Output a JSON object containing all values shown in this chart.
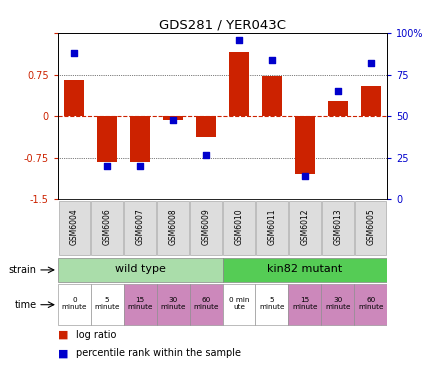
{
  "title": "GDS281 / YER043C",
  "samples": [
    "GSM6004",
    "GSM6006",
    "GSM6007",
    "GSM6008",
    "GSM6009",
    "GSM6010",
    "GSM6011",
    "GSM6012",
    "GSM6013",
    "GSM6005"
  ],
  "log_ratio": [
    0.65,
    -0.82,
    -0.82,
    -0.07,
    -0.38,
    1.15,
    0.72,
    -1.05,
    0.28,
    0.55
  ],
  "percentile": [
    88,
    20,
    20,
    48,
    27,
    96,
    84,
    14,
    65,
    82
  ],
  "bar_color": "#cc2200",
  "dot_color": "#0000cc",
  "ylim_left": [
    -1.5,
    1.5
  ],
  "ylim_right": [
    0,
    100
  ],
  "yticks_left": [
    -1.5,
    -0.75,
    0,
    0.75,
    1.5
  ],
  "ytick_labels_left": [
    "-1.5",
    "-0.75",
    "0",
    "0.75",
    ""
  ],
  "yticks_right": [
    0,
    25,
    50,
    75,
    100
  ],
  "ytick_labels_right": [
    "0",
    "25",
    "50",
    "75",
    "100%"
  ],
  "hline_color": "#cc2200",
  "wt_color_light": "#aaddaa",
  "wt_color_dark": "#55cc55",
  "time_colors": [
    "#ffffff",
    "#ffffff",
    "#cc88bb",
    "#cc88bb",
    "#cc88bb",
    "#ffffff",
    "#ffffff",
    "#cc88bb",
    "#cc88bb",
    "#cc88bb"
  ],
  "time_labels": [
    "0\nminute",
    "5\nminute",
    "15\nminute",
    "30\nminute",
    "60\nminute",
    "0 min\nute",
    "5\nminute",
    "15\nminute",
    "30\nminute",
    "60\nminute"
  ],
  "bg_color": "#ffffff",
  "gsm_bg": "#dddddd"
}
